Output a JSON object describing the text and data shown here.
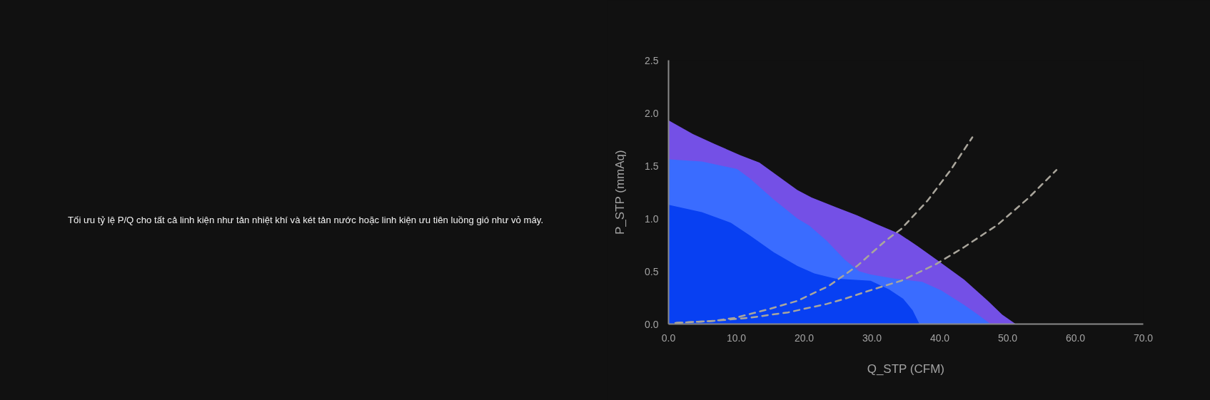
{
  "chart_data": {
    "type": "area",
    "xlabel": "Q_STP (CFM)",
    "ylabel": "P_STP (mmAq)",
    "annotations": [
      "Tối ưu tỷ lệ P/Q cho tất cả linh kiện như tản nhiệt khí và két tản nước hoặc linh kiện ưu tiên luồng gió như vỏ máy."
    ],
    "xlim": [
      0,
      70
    ],
    "ylim": [
      0,
      2.5
    ],
    "xticks": [
      {
        "value": 0,
        "label": "0.0"
      },
      {
        "value": 10,
        "label": "10.0"
      },
      {
        "value": 20,
        "label": "20.0"
      },
      {
        "value": 30,
        "label": "30.0"
      },
      {
        "value": 40,
        "label": "40.0"
      },
      {
        "value": 50,
        "label": "50.0"
      },
      {
        "value": 60,
        "label": "60.0"
      },
      {
        "value": 70,
        "label": "70.0"
      }
    ],
    "yticks": [
      {
        "value": 0,
        "label": "0.0"
      },
      0.5,
      {
        "value": 1,
        "label": "1.0"
      },
      1.5,
      {
        "value": 2,
        "label": "2.0"
      },
      2.5
    ],
    "series": [
      {
        "color": "#7450e6",
        "x": [
          0,
          3.6,
          6.7,
          10.6,
          13.4,
          16.2,
          19.0,
          21.1,
          24.6,
          27.8,
          30.6,
          33.9,
          36.7,
          40.2,
          43.6,
          47.1,
          49.2,
          51.2
        ],
        "values": [
          1.93,
          1.8,
          1.71,
          1.6,
          1.53,
          1.4,
          1.27,
          1.2,
          1.11,
          1.03,
          0.95,
          0.86,
          0.74,
          0.58,
          0.42,
          0.22,
          0.09,
          0
        ]
      },
      {
        "color": "#3a6cff",
        "x": [
          0,
          4.9,
          10.1,
          12.0,
          15.5,
          19.0,
          20.8,
          23.3,
          26.0,
          28.1,
          29.8,
          33.3,
          37.4,
          40.2,
          43.6,
          45.4,
          47.5
        ],
        "values": [
          1.56,
          1.54,
          1.47,
          1.38,
          1.18,
          1.0,
          0.93,
          0.79,
          0.61,
          0.5,
          0.47,
          0.43,
          0.4,
          0.32,
          0.18,
          0.1,
          0
        ]
      },
      {
        "color": "#0840f2",
        "x": [
          0,
          4.9,
          9.2,
          12.0,
          15.5,
          19.0,
          21.5,
          24.6,
          29.8,
          32.5,
          34.6,
          36.0,
          37.0
        ],
        "values": [
          1.13,
          1.06,
          0.96,
          0.84,
          0.68,
          0.55,
          0.48,
          0.43,
          0.41,
          0.33,
          0.24,
          0.13,
          0
        ]
      },
      {
        "type": "line",
        "color": "#aaa69c",
        "line_style": "dashed",
        "x": [
          0.8,
          6.7,
          9.9,
          14.7,
          19.0,
          23.6,
          27.8,
          32.0,
          34.3,
          38.2,
          41.6,
          44.8
        ],
        "values": [
          0.01,
          0.03,
          0.06,
          0.14,
          0.22,
          0.36,
          0.55,
          0.79,
          0.9,
          1.17,
          1.46,
          1.77
        ]
      },
      {
        "type": "line",
        "color": "#aaa69c",
        "line_style": "dashed",
        "x": [
          0.8,
          6.7,
          12.0,
          14.7,
          17.6,
          20.4,
          23.3,
          26.0,
          28.8,
          31.7,
          34.3,
          36.9,
          39.5,
          43.6,
          48.5,
          53.0,
          57.2
        ],
        "values": [
          0.01,
          0.03,
          0.06,
          0.085,
          0.11,
          0.15,
          0.19,
          0.24,
          0.3,
          0.36,
          0.41,
          0.49,
          0.57,
          0.73,
          0.94,
          1.19,
          1.46
        ]
      }
    ]
  }
}
